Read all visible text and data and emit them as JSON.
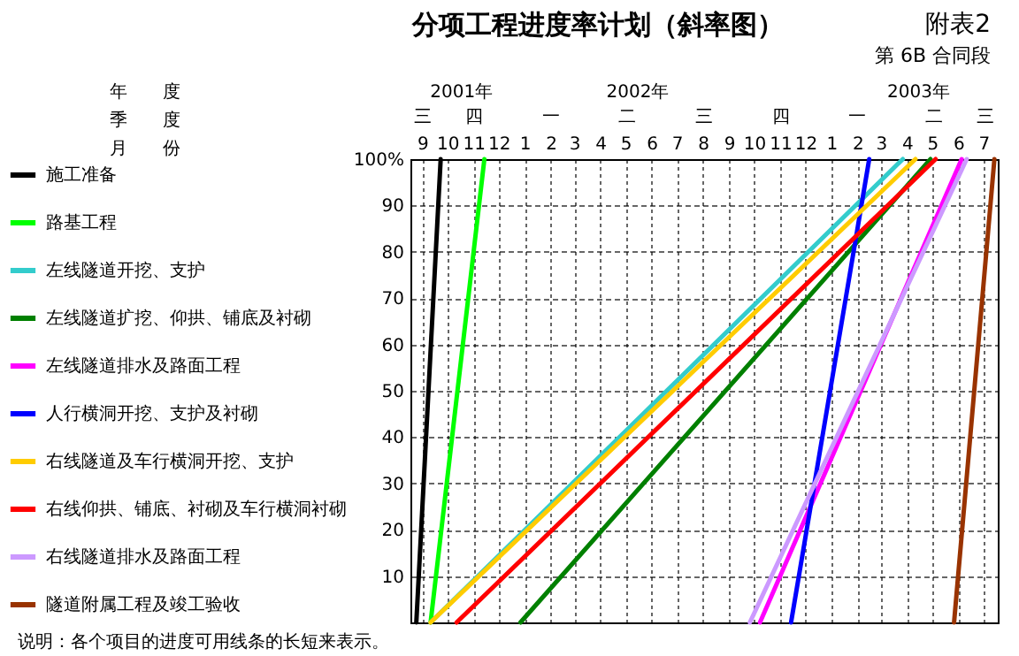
{
  "chart_data": {
    "type": "line",
    "title": "分项工程进度率计划（斜率图）",
    "xlim": [
      "2001-09-01",
      "2003-08-01"
    ],
    "xticks": [
      {
        "value": "2001-09-15",
        "label": "9"
      },
      {
        "value": "2001-10-15",
        "label": "10"
      },
      {
        "value": "2001-11-15",
        "label": "11"
      },
      {
        "value": "2001-12-15",
        "label": "12"
      },
      {
        "value": "2002-01-15",
        "label": "1"
      },
      {
        "value": "2002-02-15",
        "label": "2"
      },
      {
        "value": "2002-03-15",
        "label": "3"
      },
      {
        "value": "2002-04-15",
        "label": "4"
      },
      {
        "value": "2002-05-15",
        "label": "5"
      },
      {
        "value": "2002-06-15",
        "label": "6"
      },
      {
        "value": "2002-07-15",
        "label": "7"
      },
      {
        "value": "2002-08-15",
        "label": "8"
      },
      {
        "value": "2002-09-15",
        "label": "9"
      },
      {
        "value": "2002-10-15",
        "label": "10"
      },
      {
        "value": "2002-11-15",
        "label": "11"
      },
      {
        "value": "2002-12-15",
        "label": "12"
      },
      {
        "value": "2003-01-15",
        "label": "1"
      },
      {
        "value": "2003-02-15",
        "label": "2"
      },
      {
        "value": "2003-03-15",
        "label": "3"
      },
      {
        "value": "2003-04-15",
        "label": "4"
      },
      {
        "value": "2003-05-15",
        "label": "5"
      },
      {
        "value": "2003-06-15",
        "label": "6"
      },
      {
        "value": "2003-07-15",
        "label": "7"
      }
    ],
    "ylim": [
      0,
      100
    ],
    "yticks": [
      10,
      20,
      30,
      40,
      50,
      60,
      70,
      80,
      90,
      {
        "value": 100,
        "label": "100%"
      }
    ],
    "grid": true,
    "legend": "left",
    "line_style": "solid",
    "series": [
      {
        "name": "施工准备",
        "color": "#000000",
        "x": [
          "2001-09-08",
          "2001-10-07"
        ],
        "values": [
          0,
          100
        ]
      },
      {
        "name": "路基工程",
        "color": "#00ff00",
        "x": [
          "2001-09-25",
          "2001-11-28"
        ],
        "values": [
          0,
          100
        ]
      },
      {
        "name": "左线隧道开挖、支护",
        "color": "#33cccc",
        "x": [
          "2001-09-25",
          "2003-04-10"
        ],
        "values": [
          0,
          100
        ]
      },
      {
        "name": "左线隧道扩挖、仰拱、铺底及衬砌",
        "color": "#008000",
        "x": [
          "2002-01-10",
          "2003-05-13"
        ],
        "values": [
          0,
          100
        ]
      },
      {
        "name": "左线隧道排水及路面工程",
        "color": "#ff00ff",
        "x": [
          "2002-10-22",
          "2003-06-19"
        ],
        "values": [
          0,
          100
        ]
      },
      {
        "name": "人行横洞开挖、支护及衬砌",
        "color": "#0000ff",
        "x": [
          "2002-11-28",
          "2003-03-01"
        ],
        "values": [
          0,
          100
        ]
      },
      {
        "name": "右线隧道及车行横洞开挖、支护",
        "color": "#ffcc00",
        "x": [
          "2001-09-25",
          "2003-04-25"
        ],
        "values": [
          0,
          100
        ]
      },
      {
        "name": "右线仰拱、铺底、衬砌及车行横洞衬砌",
        "color": "#ff0000",
        "x": [
          "2001-10-26",
          "2003-05-19"
        ],
        "values": [
          0,
          100
        ]
      },
      {
        "name": "右线隧道排水及路面工程",
        "color": "#cc99ff",
        "x": [
          "2002-10-10",
          "2003-06-25"
        ],
        "values": [
          0,
          100
        ]
      },
      {
        "name": "隧道附属工程及竣工验收",
        "color": "#993300",
        "x": [
          "2003-06-10",
          "2003-07-28"
        ],
        "values": [
          0,
          100
        ]
      }
    ],
    "annotations": [
      "附表2",
      "第 6B 合同段",
      "年　　度",
      "季　　度",
      "月　　份",
      "说明：各个项目的进度可用线条的长短来表示。",
      "2001年",
      "2002年",
      "2003年",
      "三",
      "四",
      "一",
      "二",
      "三",
      "四",
      "一",
      "二",
      "三"
    ]
  }
}
